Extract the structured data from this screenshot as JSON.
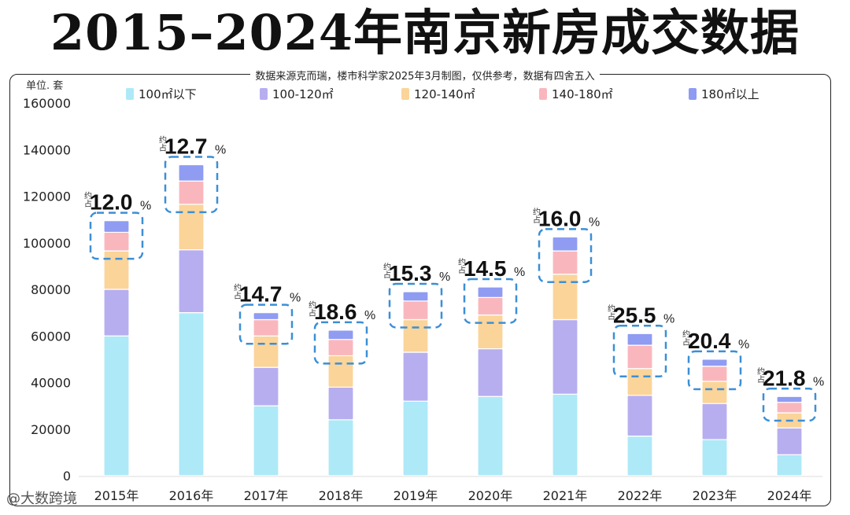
{
  "title": "2015–2024年南京新房成交数据",
  "subtitle": "数据来源克而瑞，楼市科学家2025年3月制图，仅供参考，数据有四舍五入",
  "unit_label": "单位. 套",
  "watermark": "@大数跨境",
  "colors": {
    "100m2以下": "#aee9f7",
    "100-120m2": "#b7aef0",
    "120-140m2": "#fbd49a",
    "140-180m2": "#f9b7bd",
    "180m2以上": "#8f9cf2",
    "highlight_box": "#3b8fd6"
  },
  "chart_data": {
    "type": "bar",
    "stacked": true,
    "ylim": [
      0,
      160000
    ],
    "yticks": [
      0,
      20000,
      40000,
      60000,
      80000,
      100000,
      120000,
      140000,
      160000
    ],
    "categories": [
      "2015年",
      "2016年",
      "2017年",
      "2018年",
      "2019年",
      "2020年",
      "2021年",
      "2022年",
      "2023年",
      "2024年"
    ],
    "legend_position": "top",
    "series": [
      {
        "name": "100㎡以下",
        "values": [
          60000,
          70000,
          30000,
          24000,
          32000,
          34000,
          35000,
          17000,
          15500,
          9000
        ]
      },
      {
        "name": "100-120㎡",
        "values": [
          20000,
          27000,
          16500,
          14000,
          21000,
          20500,
          32000,
          17500,
          15500,
          11500
        ]
      },
      {
        "name": "120-140㎡",
        "values": [
          16500,
          19500,
          13500,
          13500,
          14000,
          14500,
          19500,
          11500,
          9500,
          6500
        ]
      },
      {
        "name": "140-180㎡",
        "values": [
          8000,
          10000,
          7000,
          7000,
          8000,
          7500,
          10000,
          10000,
          6500,
          4500
        ]
      },
      {
        "name": "180㎡以上",
        "values": [
          5000,
          7000,
          3000,
          4000,
          4000,
          4500,
          6000,
          5000,
          3000,
          2500
        ]
      }
    ],
    "annotations": [
      {
        "prefix": "约占",
        "value": "12.0",
        "unit": "%"
      },
      {
        "prefix": "约占",
        "value": "12.7",
        "unit": "%"
      },
      {
        "prefix": "约占",
        "value": "14.7",
        "unit": "%"
      },
      {
        "prefix": "约占",
        "value": "18.6",
        "unit": "%"
      },
      {
        "prefix": "约占",
        "value": "15.3",
        "unit": "%"
      },
      {
        "prefix": "约占",
        "value": "14.5",
        "unit": "%"
      },
      {
        "prefix": "约占",
        "value": "16.0",
        "unit": "%"
      },
      {
        "prefix": "约占",
        "value": "25.5",
        "unit": "%"
      },
      {
        "prefix": "约占",
        "value": "20.4",
        "unit": "%"
      },
      {
        "prefix": "约占",
        "value": "21.8",
        "unit": "%"
      }
    ]
  }
}
